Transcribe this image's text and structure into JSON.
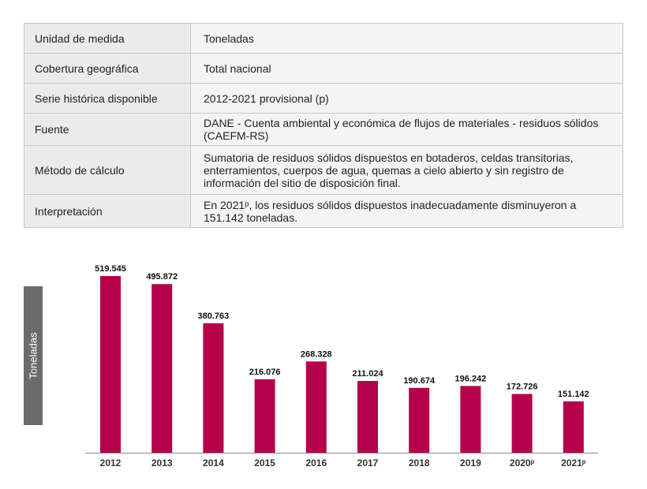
{
  "table": {
    "rows": [
      {
        "label": "Unidad de medida",
        "value": "Toneladas"
      },
      {
        "label": "Cobertura geográfica",
        "value": "Total nacional"
      },
      {
        "label": "Serie histórica disponible",
        "value": "2012-2021 provisional (p)"
      },
      {
        "label": "Fuente",
        "value": "DANE - Cuenta ambiental y económica de flujos de materiales - residuos sólidos (CAEFM-RS)"
      },
      {
        "label": "Método de cálculo",
        "value": "Sumatoria de residuos sólidos dispuestos en botaderos, celdas transitorias, enterramientos, cuerpos de agua, quemas a cielo abierto y sin registro de información del sitio de disposición final."
      },
      {
        "label": "Interpretación",
        "value": "En 2021ᵖ, los residuos sólidos dispuestos inadecuadamente disminuyeron a 151.142 toneladas."
      }
    ]
  },
  "chart_data": {
    "type": "bar",
    "categories": [
      "2012",
      "2013",
      "2014",
      "2015",
      "2016",
      "2017",
      "2018",
      "2019",
      "2020ᵖ",
      "2021ᵖ"
    ],
    "values": [
      519545,
      495872,
      380763,
      216076,
      268328,
      211024,
      190674,
      196242,
      172726,
      151142
    ],
    "value_labels": [
      "519.545",
      "495.872",
      "380.763",
      "216.076",
      "268.328",
      "211.024",
      "190.674",
      "196.242",
      "172.726",
      "151.142"
    ],
    "ylabel": "Toneladas",
    "ylim": [
      0,
      519545
    ],
    "bar_color": "#b5004a",
    "grid": false,
    "legend": "none"
  }
}
